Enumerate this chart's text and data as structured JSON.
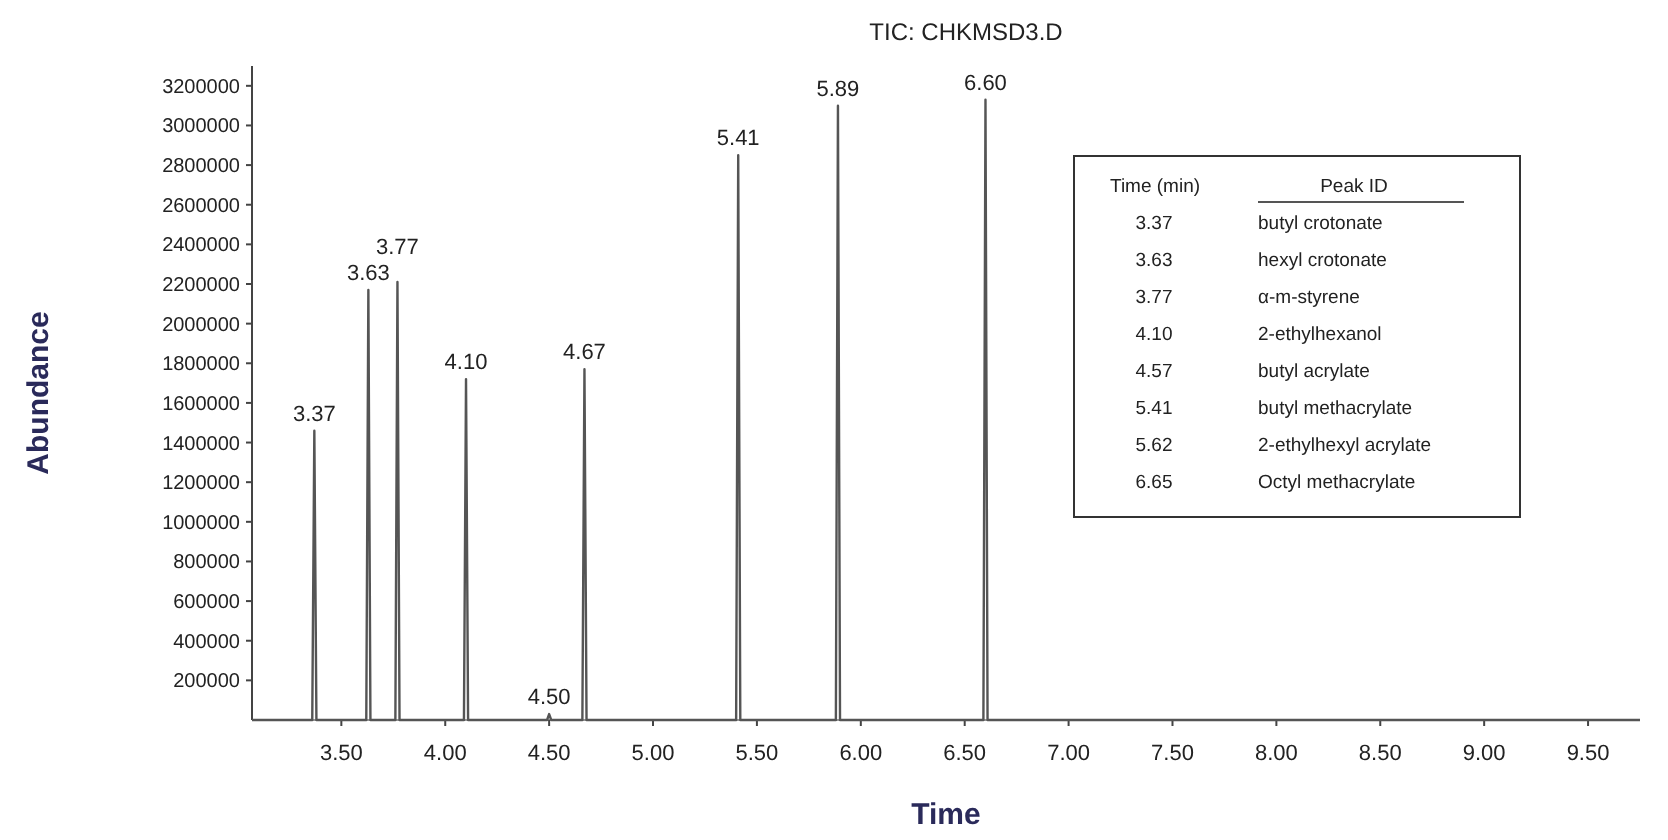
{
  "chart_data": {
    "type": "line",
    "title": "TIC: CHKMSD3.D",
    "xlabel": "Time",
    "ylabel": "Abundance",
    "x": [
      3.07,
      3.36,
      3.37,
      3.38,
      3.62,
      3.63,
      3.64,
      3.76,
      3.77,
      3.78,
      4.09,
      4.1,
      4.11,
      4.49,
      4.5,
      4.51,
      4.66,
      4.67,
      4.68,
      5.4,
      5.41,
      5.42,
      5.88,
      5.89,
      5.9,
      6.59,
      6.6,
      6.61,
      9.75
    ],
    "series": [
      {
        "color": "#555555",
        "values": [
          0,
          0,
          1460000,
          0,
          0,
          2170000,
          0,
          0,
          2210000,
          0,
          0,
          1720000,
          0,
          0,
          30000,
          0,
          0,
          1770000,
          0,
          0,
          2850000,
          0,
          0,
          3100000,
          0,
          0,
          3130000,
          0,
          0
        ]
      }
    ],
    "xlim": [
      3.07,
      9.75
    ],
    "xticks": [
      {
        "value": 3.5,
        "label": "3.50"
      },
      {
        "value": 4,
        "label": "4.00"
      },
      {
        "value": 4.5,
        "label": "4.50"
      },
      {
        "value": 5,
        "label": "5.00"
      },
      {
        "value": 5.5,
        "label": "5.50"
      },
      {
        "value": 6,
        "label": "6.00"
      },
      {
        "value": 6.5,
        "label": "6.50"
      },
      {
        "value": 7,
        "label": "7.00"
      },
      {
        "value": 7.5,
        "label": "7.50"
      },
      {
        "value": 8,
        "label": "8.00"
      },
      {
        "value": 8.5,
        "label": "8.50"
      },
      {
        "value": 9,
        "label": "9.00"
      },
      {
        "value": 9.5,
        "label": "9.50"
      }
    ],
    "ylim": [
      0,
      3300000
    ],
    "yticks": [
      200000,
      400000,
      600000,
      800000,
      1000000,
      1200000,
      1400000,
      1600000,
      1800000,
      2000000,
      2200000,
      2400000,
      2600000,
      2800000,
      3000000,
      3200000
    ],
    "grid": false,
    "marker": "none",
    "line_style": "solid",
    "annotations": [
      {
        "text": "3.37",
        "x": 3.37,
        "y": 1460000
      },
      {
        "text": "3.63",
        "x": 3.63,
        "y": 2170000
      },
      {
        "text": "3.77",
        "x": 3.77,
        "y": 2210000
      },
      {
        "text": "4.10",
        "x": 4.1,
        "y": 1720000
      },
      {
        "text": "4.50",
        "x": 4.5,
        "y": 30000
      },
      {
        "text": "4.67",
        "x": 4.67,
        "y": 1770000
      },
      {
        "text": "5.41",
        "x": 5.41,
        "y": 2850000
      },
      {
        "text": "5.89",
        "x": 5.89,
        "y": 3100000
      },
      {
        "text": "6.60",
        "x": 6.6,
        "y": 3130000
      },
      "Time (min)",
      "Peak ID",
      "3.37",
      "butyl crotonate",
      "3.63",
      "hexyl crotonate",
      "3.77",
      "α-m-styrene",
      "4.10",
      "2-ethylhexanol",
      "4.57",
      "butyl acrylate",
      "5.41",
      "butyl methacrylate",
      "5.62",
      "2-ethylhexyl acrylate",
      "6.65",
      "Octyl methacrylate"
    ]
  }
}
